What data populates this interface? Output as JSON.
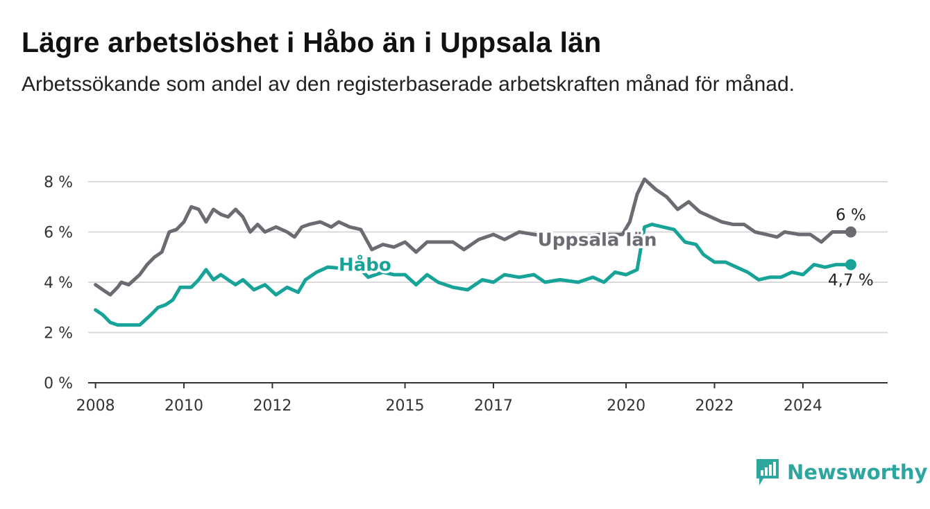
{
  "title": "Lägre arbetslöshet i Håbo än i Uppsala län",
  "subtitle": "Arbetssökande som andel av den registerbaserade arbetskraften månad för månad.",
  "brand": {
    "name": "Newsworthy",
    "icon": "newsworthy-logo-icon"
  },
  "colors": {
    "habo": "#17a398",
    "uppsala": "#6b6b72",
    "grid": "#d9d9d9",
    "axis": "#333333",
    "brand": "#2ea6a0"
  },
  "chart_data": {
    "type": "line",
    "title": "Lägre arbetslöshet i Håbo än i Uppsala län",
    "subtitle": "Arbetssökande som andel av den registerbaserade arbetskraften månad för månad.",
    "xlabel": "",
    "ylabel": "",
    "ylim": [
      0,
      8
    ],
    "y_ticks": [
      0,
      2,
      4,
      6,
      8
    ],
    "y_tick_labels": [
      "0 %",
      "2 %",
      "4 %",
      "6 %",
      "8 %"
    ],
    "x_range": [
      "2007-11",
      "2025-12"
    ],
    "x_ticks": [
      "2008",
      "2010",
      "2012",
      "2015",
      "2017",
      "2020",
      "2022",
      "2024"
    ],
    "grid": true,
    "legend": "inline labels",
    "series": [
      {
        "name": "Uppsala län",
        "color": "#6b6b72",
        "end_label": "6 %",
        "points": [
          [
            "2008-01",
            3.9
          ],
          [
            "2008-03",
            3.7
          ],
          [
            "2008-05",
            3.5
          ],
          [
            "2008-07",
            3.8
          ],
          [
            "2008-08",
            4.0
          ],
          [
            "2008-10",
            3.9
          ],
          [
            "2009-01",
            4.3
          ],
          [
            "2009-03",
            4.7
          ],
          [
            "2009-05",
            5.0
          ],
          [
            "2009-07",
            5.2
          ],
          [
            "2009-09",
            6.0
          ],
          [
            "2009-11",
            6.1
          ],
          [
            "2010-01",
            6.4
          ],
          [
            "2010-03",
            7.0
          ],
          [
            "2010-05",
            6.9
          ],
          [
            "2010-07",
            6.4
          ],
          [
            "2010-09",
            6.9
          ],
          [
            "2010-11",
            6.7
          ],
          [
            "2011-01",
            6.6
          ],
          [
            "2011-03",
            6.9
          ],
          [
            "2011-05",
            6.6
          ],
          [
            "2011-07",
            6.0
          ],
          [
            "2011-09",
            6.3
          ],
          [
            "2011-11",
            6.0
          ],
          [
            "2012-02",
            6.2
          ],
          [
            "2012-05",
            6.0
          ],
          [
            "2012-07",
            5.8
          ],
          [
            "2012-09",
            6.2
          ],
          [
            "2012-11",
            6.3
          ],
          [
            "2013-02",
            6.4
          ],
          [
            "2013-05",
            6.2
          ],
          [
            "2013-07",
            6.4
          ],
          [
            "2013-10",
            6.2
          ],
          [
            "2014-01",
            6.1
          ],
          [
            "2014-04",
            5.3
          ],
          [
            "2014-07",
            5.5
          ],
          [
            "2014-10",
            5.4
          ],
          [
            "2015-01",
            5.6
          ],
          [
            "2015-04",
            5.2
          ],
          [
            "2015-07",
            5.6
          ],
          [
            "2015-10",
            5.6
          ],
          [
            "2016-02",
            5.6
          ],
          [
            "2016-05",
            5.3
          ],
          [
            "2016-09",
            5.7
          ],
          [
            "2017-01",
            5.9
          ],
          [
            "2017-04",
            5.7
          ],
          [
            "2017-08",
            6.0
          ],
          [
            "2017-12",
            5.9
          ],
          [
            "2018-06",
            5.8
          ],
          [
            "2018-12",
            5.8
          ],
          [
            "2019-06",
            5.9
          ],
          [
            "2019-12",
            5.9
          ],
          [
            "2020-02",
            6.4
          ],
          [
            "2020-04",
            7.5
          ],
          [
            "2020-06",
            8.1
          ],
          [
            "2020-09",
            7.7
          ],
          [
            "2020-12",
            7.4
          ],
          [
            "2021-03",
            6.9
          ],
          [
            "2021-06",
            7.2
          ],
          [
            "2021-09",
            6.8
          ],
          [
            "2021-12",
            6.6
          ],
          [
            "2022-03",
            6.4
          ],
          [
            "2022-06",
            6.3
          ],
          [
            "2022-09",
            6.3
          ],
          [
            "2022-12",
            6.0
          ],
          [
            "2023-03",
            5.9
          ],
          [
            "2023-06",
            5.8
          ],
          [
            "2023-08",
            6.0
          ],
          [
            "2023-12",
            5.9
          ],
          [
            "2024-03",
            5.9
          ],
          [
            "2024-06",
            5.6
          ],
          [
            "2024-09",
            6.0
          ],
          [
            "2025-02",
            6.0
          ]
        ]
      },
      {
        "name": "Håbo",
        "color": "#17a398",
        "end_label": "4,7 %",
        "points": [
          [
            "2008-01",
            2.9
          ],
          [
            "2008-03",
            2.7
          ],
          [
            "2008-05",
            2.4
          ],
          [
            "2008-07",
            2.3
          ],
          [
            "2008-10",
            2.3
          ],
          [
            "2009-01",
            2.3
          ],
          [
            "2009-04",
            2.7
          ],
          [
            "2009-06",
            3.0
          ],
          [
            "2009-08",
            3.1
          ],
          [
            "2009-10",
            3.3
          ],
          [
            "2009-12",
            3.8
          ],
          [
            "2010-03",
            3.8
          ],
          [
            "2010-05",
            4.1
          ],
          [
            "2010-07",
            4.5
          ],
          [
            "2010-09",
            4.1
          ],
          [
            "2010-11",
            4.3
          ],
          [
            "2011-01",
            4.1
          ],
          [
            "2011-03",
            3.9
          ],
          [
            "2011-05",
            4.1
          ],
          [
            "2011-08",
            3.7
          ],
          [
            "2011-11",
            3.9
          ],
          [
            "2012-02",
            3.5
          ],
          [
            "2012-05",
            3.8
          ],
          [
            "2012-08",
            3.6
          ],
          [
            "2012-10",
            4.1
          ],
          [
            "2013-01",
            4.4
          ],
          [
            "2013-04",
            4.6
          ],
          [
            "2014-01",
            4.5
          ],
          [
            "2014-03",
            4.2
          ],
          [
            "2014-07",
            4.4
          ],
          [
            "2014-10",
            4.3
          ],
          [
            "2015-01",
            4.3
          ],
          [
            "2015-04",
            3.9
          ],
          [
            "2015-07",
            4.3
          ],
          [
            "2015-10",
            4.0
          ],
          [
            "2016-02",
            3.8
          ],
          [
            "2016-06",
            3.7
          ],
          [
            "2016-10",
            4.1
          ],
          [
            "2017-01",
            4.0
          ],
          [
            "2017-04",
            4.3
          ],
          [
            "2017-08",
            4.2
          ],
          [
            "2017-12",
            4.3
          ],
          [
            "2018-03",
            4.0
          ],
          [
            "2018-07",
            4.1
          ],
          [
            "2018-12",
            4.0
          ],
          [
            "2019-04",
            4.2
          ],
          [
            "2019-07",
            4.0
          ],
          [
            "2019-10",
            4.4
          ],
          [
            "2020-01",
            4.3
          ],
          [
            "2020-04",
            4.5
          ],
          [
            "2020-06",
            6.2
          ],
          [
            "2020-08",
            6.3
          ],
          [
            "2020-11",
            6.2
          ],
          [
            "2021-02",
            6.1
          ],
          [
            "2021-05",
            5.6
          ],
          [
            "2021-08",
            5.5
          ],
          [
            "2021-10",
            5.1
          ],
          [
            "2022-01",
            4.8
          ],
          [
            "2022-04",
            4.8
          ],
          [
            "2022-07",
            4.6
          ],
          [
            "2022-10",
            4.4
          ],
          [
            "2023-01",
            4.1
          ],
          [
            "2023-04",
            4.2
          ],
          [
            "2023-07",
            4.2
          ],
          [
            "2023-10",
            4.4
          ],
          [
            "2024-01",
            4.3
          ],
          [
            "2024-04",
            4.7
          ],
          [
            "2024-07",
            4.6
          ],
          [
            "2024-10",
            4.7
          ],
          [
            "2025-02",
            4.7
          ]
        ]
      }
    ]
  }
}
